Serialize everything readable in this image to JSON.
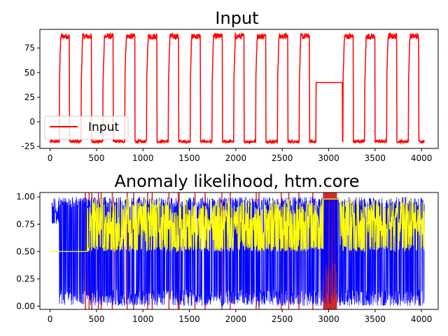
{
  "chart_data": [
    {
      "type": "line",
      "title": "Input",
      "xlabel": "",
      "ylabel": "",
      "xlim": [
        -110,
        4180
      ],
      "ylim": [
        -27,
        94
      ],
      "xticks": [
        0,
        500,
        1000,
        1500,
        2000,
        2500,
        3000,
        3500,
        4000
      ],
      "yticks": [
        -25,
        0,
        25,
        50,
        75
      ],
      "grid": false,
      "legend": {
        "placement": "lower-left",
        "entries": [
          "Input"
        ]
      },
      "series": [
        {
          "name": "Input",
          "color": "#ff0000",
          "pattern": {
            "low": -20,
            "high": 87,
            "period": 235,
            "high_duration": 110,
            "first_rise": 100,
            "end": 4030
          },
          "flat_anomaly": {
            "x_start": 2860,
            "x_end": 3150,
            "value": 40
          }
        }
      ]
    },
    {
      "type": "line",
      "title": "Anomaly likelihood, htm.core",
      "xlabel": "",
      "ylabel": "",
      "xlim": [
        -110,
        4180
      ],
      "ylim": [
        -0.03,
        1.04
      ],
      "xticks": [
        0,
        500,
        1000,
        1500,
        2000,
        2500,
        3000,
        3500,
        4000
      ],
      "yticks": [
        0.0,
        0.25,
        0.5,
        0.75,
        1.0
      ],
      "yticklabels": [
        "0.00",
        "0.25",
        "0.50",
        "0.75",
        "1.00"
      ],
      "grid": false,
      "series": [
        {
          "color": "#0000ff",
          "x_start": 20,
          "x_end": 4030,
          "range": [
            0.0,
            1.0
          ]
        },
        {
          "color": "#ffff00",
          "x_start": 0,
          "x_end": 4030,
          "baseline": 0.5,
          "start_level": 0.5,
          "start_until": 400
        }
      ],
      "highlight_regions": {
        "color": "#d62728",
        "spans": [
          [
            2940,
            3090
          ]
        ],
        "lines": [
          380,
          420,
          450,
          520,
          550,
          670,
          830,
          900,
          1050,
          1100,
          1280,
          1380,
          1390,
          1560,
          1670,
          1850,
          1940,
          2220,
          2250,
          2490,
          2570,
          2680,
          2830
        ]
      }
    }
  ]
}
